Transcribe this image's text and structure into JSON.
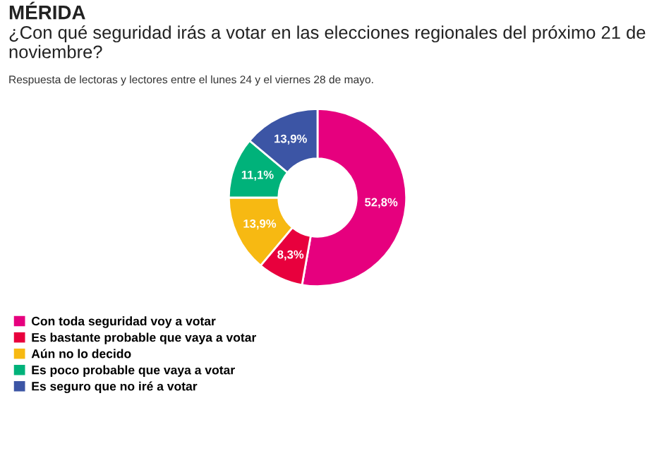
{
  "chart_data": {
    "type": "donut",
    "title": "MÉRIDA",
    "subtitle": "¿Con qué seguridad irás a votar en las elecciones regionales del próximo 21 de noviembre?",
    "annotations": [
      "Respuesta de lectoras y lectores entre el lunes 24 y el viernes 28 de mayo."
    ],
    "categories": [
      "Con toda seguridad voy a votar",
      "Es bastante probable que vaya a votar",
      "Aún no lo decido",
      "Es poco probable que vaya a votar",
      "Es seguro que no iré a votar"
    ],
    "values": [
      52.8,
      8.3,
      13.9,
      11.1,
      13.9
    ],
    "value_labels": [
      "52,8%",
      "8,3%",
      "13,9%",
      "11,1%",
      "13,9%"
    ],
    "colors": [
      "#e6007e",
      "#e8003d",
      "#f7b912",
      "#00b27a",
      "#3c55a5"
    ],
    "legend": "bottom left"
  }
}
